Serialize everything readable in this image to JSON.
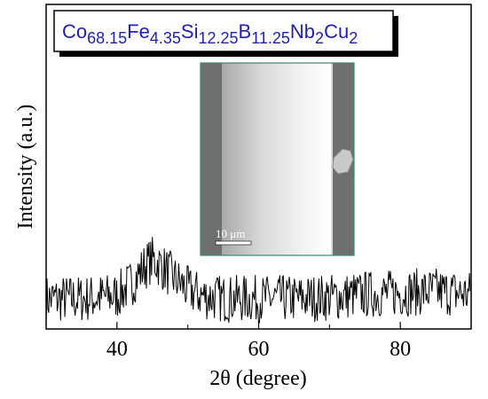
{
  "chart_data": {
    "type": "line",
    "title": "",
    "xlabel": "2θ (degree)",
    "ylabel": "Intensity (a.u.)",
    "xlim": [
      30,
      90
    ],
    "xticks": [
      40,
      60,
      80
    ],
    "y_ticks_shown": false,
    "grid": false,
    "legend": "none",
    "series": [
      {
        "color": "#000000",
        "description_points": {
          "x": [
            30,
            35,
            40,
            42,
            44,
            45,
            46,
            48,
            50,
            52,
            55,
            60,
            65,
            70,
            75,
            80,
            85,
            90
          ],
          "y": [
            2.0,
            2.0,
            2.2,
            3.0,
            4.2,
            4.6,
            4.3,
            3.4,
            2.6,
            2.2,
            2.0,
            2.0,
            2.0,
            2.1,
            2.3,
            2.4,
            2.5,
            2.3
          ]
        },
        "noise_amplitude": 1.6
      }
    ],
    "formula_box": {
      "parts": [
        {
          "t": "Co",
          "s": "68.15"
        },
        {
          "t": "Fe",
          "s": "4.35"
        },
        {
          "t": "Si",
          "s": "12.25"
        },
        {
          "t": "B",
          "s": "11.25"
        },
        {
          "t": "Nb",
          "s": "2"
        },
        {
          "t": "Cu",
          "s": "2"
        }
      ],
      "text_color": "#1f1fb5"
    },
    "inset": {
      "scale_bar_label": "10 μm",
      "border_color": "#2e8b72"
    }
  }
}
